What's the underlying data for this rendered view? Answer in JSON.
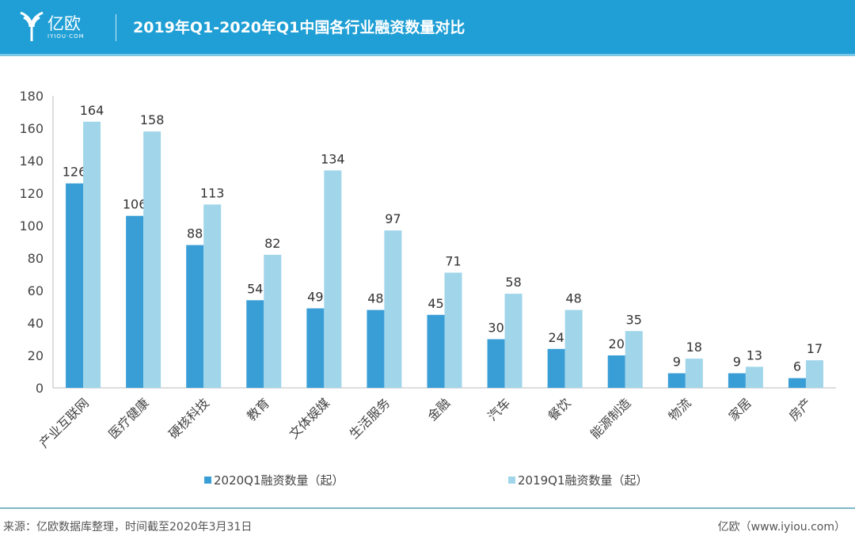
{
  "header": {
    "brand": "亿欧",
    "brand_sub": "IYIOU·COM",
    "title": "2019年Q1-2020年Q1中国各行业融资数量对比"
  },
  "chart_data": {
    "type": "bar",
    "title": "2019年Q1-2020年Q1中国各行业融资数量对比",
    "categories": [
      "产业互联网",
      "医疗健康",
      "硬核科技",
      "教育",
      "文体娱媒",
      "生活服务",
      "金融",
      "汽车",
      "餐饮",
      "能源制造",
      "物流",
      "家居",
      "房产"
    ],
    "series": [
      {
        "name": "2020Q1融资数量（起）",
        "color": "#3a9ed6",
        "values": [
          126,
          106,
          88,
          54,
          49,
          48,
          45,
          30,
          24,
          20,
          9,
          9,
          6
        ]
      },
      {
        "name": "2019Q1融资数量（起）",
        "color": "#a0d5ea",
        "values": [
          164,
          158,
          113,
          82,
          134,
          97,
          71,
          58,
          48,
          35,
          18,
          13,
          17
        ]
      }
    ],
    "ylim": [
      0,
      180
    ],
    "yticks": [
      0,
      20,
      40,
      60,
      80,
      100,
      120,
      140,
      160,
      180
    ],
    "xlabel": "",
    "ylabel": "",
    "legend": "bottom"
  },
  "footer": {
    "source": "来源：亿欧数据库整理，时间截至2020年3月31日",
    "site": "亿欧（www.iyiou.com）"
  }
}
